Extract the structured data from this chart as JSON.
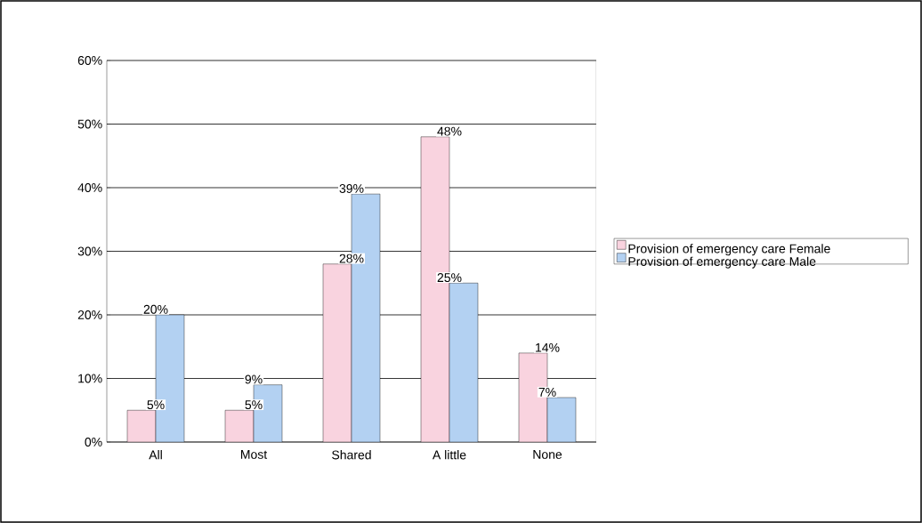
{
  "chart_data": {
    "type": "bar",
    "categories": [
      "All",
      "Most",
      "Shared",
      "A little",
      "None"
    ],
    "series": [
      {
        "name": "Provision of emergency care Female",
        "color": "#f9d3df",
        "values": [
          5,
          5,
          28,
          48,
          14
        ],
        "value_labels": [
          "5%",
          "5%",
          "28%",
          "48%",
          "14%"
        ]
      },
      {
        "name": "Provision of emergency care Male",
        "color": "#b3d1f2",
        "values": [
          20,
          9,
          39,
          25,
          7
        ],
        "value_labels": [
          "20%",
          "9%",
          "39%",
          "25%",
          "7%"
        ]
      }
    ],
    "ylim": [
      0,
      60
    ],
    "yticks": [
      {
        "value": 0,
        "label": "0%"
      },
      {
        "value": 10,
        "label": "10%"
      },
      {
        "value": 20,
        "label": "20%"
      },
      {
        "value": 30,
        "label": "30%"
      },
      {
        "value": 40,
        "label": "40%"
      },
      {
        "value": 50,
        "label": "50%"
      },
      {
        "value": 60,
        "label": "60%"
      }
    ],
    "grid": "y",
    "legend": "right"
  }
}
